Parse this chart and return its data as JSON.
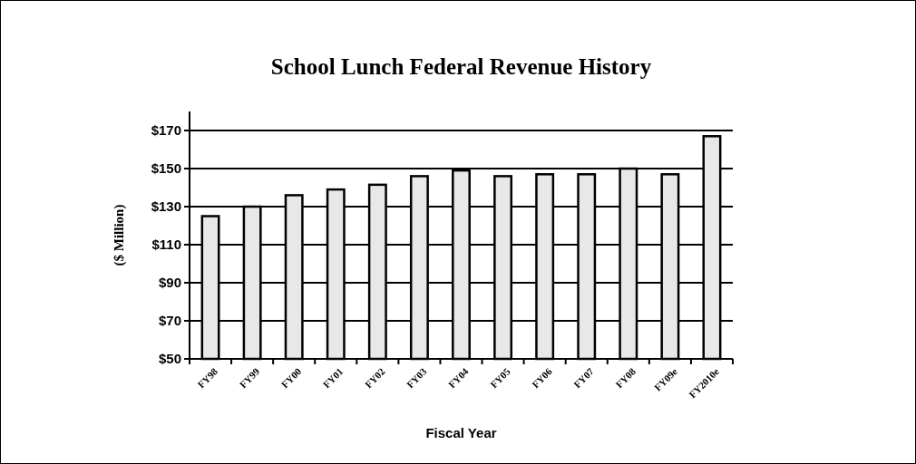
{
  "chart_data": {
    "type": "bar",
    "title": "School Lunch Federal Revenue History",
    "xlabel": "Fiscal Year",
    "ylabel": "($ Million)",
    "categories": [
      "FY98",
      "FY99",
      "FY00",
      "FY01",
      "FY02",
      "FY03",
      "FY04",
      "FY05",
      "FY06",
      "FY07",
      "FY08",
      "FY09e",
      "FY2010e"
    ],
    "values": [
      125,
      130,
      136,
      139,
      141.5,
      146,
      149,
      146,
      147,
      147,
      150,
      147,
      167
    ],
    "color": "#e8e8e8",
    "ylim": [
      50,
      180
    ],
    "yticks": [
      {
        "value": 50,
        "label": "$50"
      },
      {
        "value": 70,
        "label": "$70"
      },
      {
        "value": 90,
        "label": "$90"
      },
      {
        "value": 110,
        "label": "$110"
      },
      {
        "value": 130,
        "label": "$130"
      },
      {
        "value": 150,
        "label": "$150"
      },
      {
        "value": 170,
        "label": "$170"
      }
    ],
    "grid": "y"
  }
}
